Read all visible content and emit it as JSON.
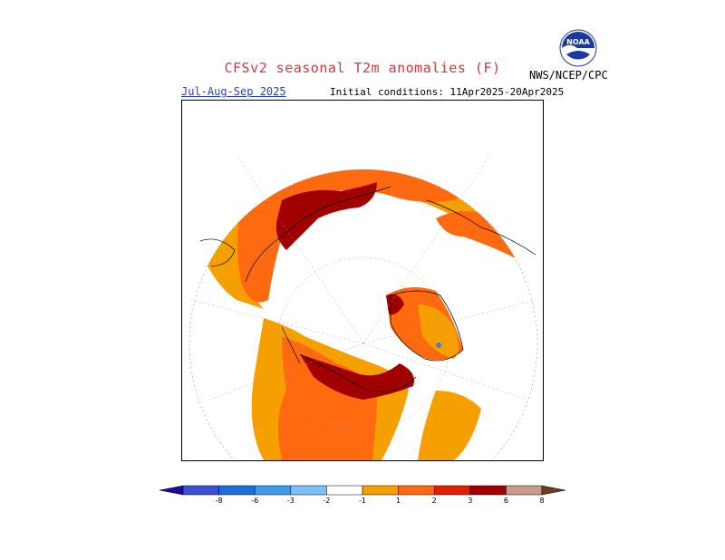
{
  "title": "CFSv2 seasonal T2m anomalies (F)",
  "season": "Jul-Aug-Sep 2025",
  "initial_conditions": "Initial conditions: 11Apr2025-20Apr2025",
  "agency": "NWS/NCEP/CPC",
  "logo_text": "NOAA",
  "legend": {
    "ticks": [
      "-8",
      "-6",
      "-3",
      "-2",
      "-1",
      "1",
      "2",
      "3",
      "6",
      "8"
    ],
    "colors": [
      "#1a0aa0",
      "#3a4fd2",
      "#1e6fd4",
      "#3e9ae8",
      "#7cc0f5",
      "#ffffff",
      "#f5a000",
      "#ff6a10",
      "#e02000",
      "#a00000",
      "#c89a8a",
      "#6e3a2a"
    ]
  },
  "map_colors": {
    "cat1": "#f5a000",
    "cat2": "#ff6a10",
    "cat3": "#e02000",
    "cat4": "#a00000",
    "cold": "#4a7ad0"
  }
}
